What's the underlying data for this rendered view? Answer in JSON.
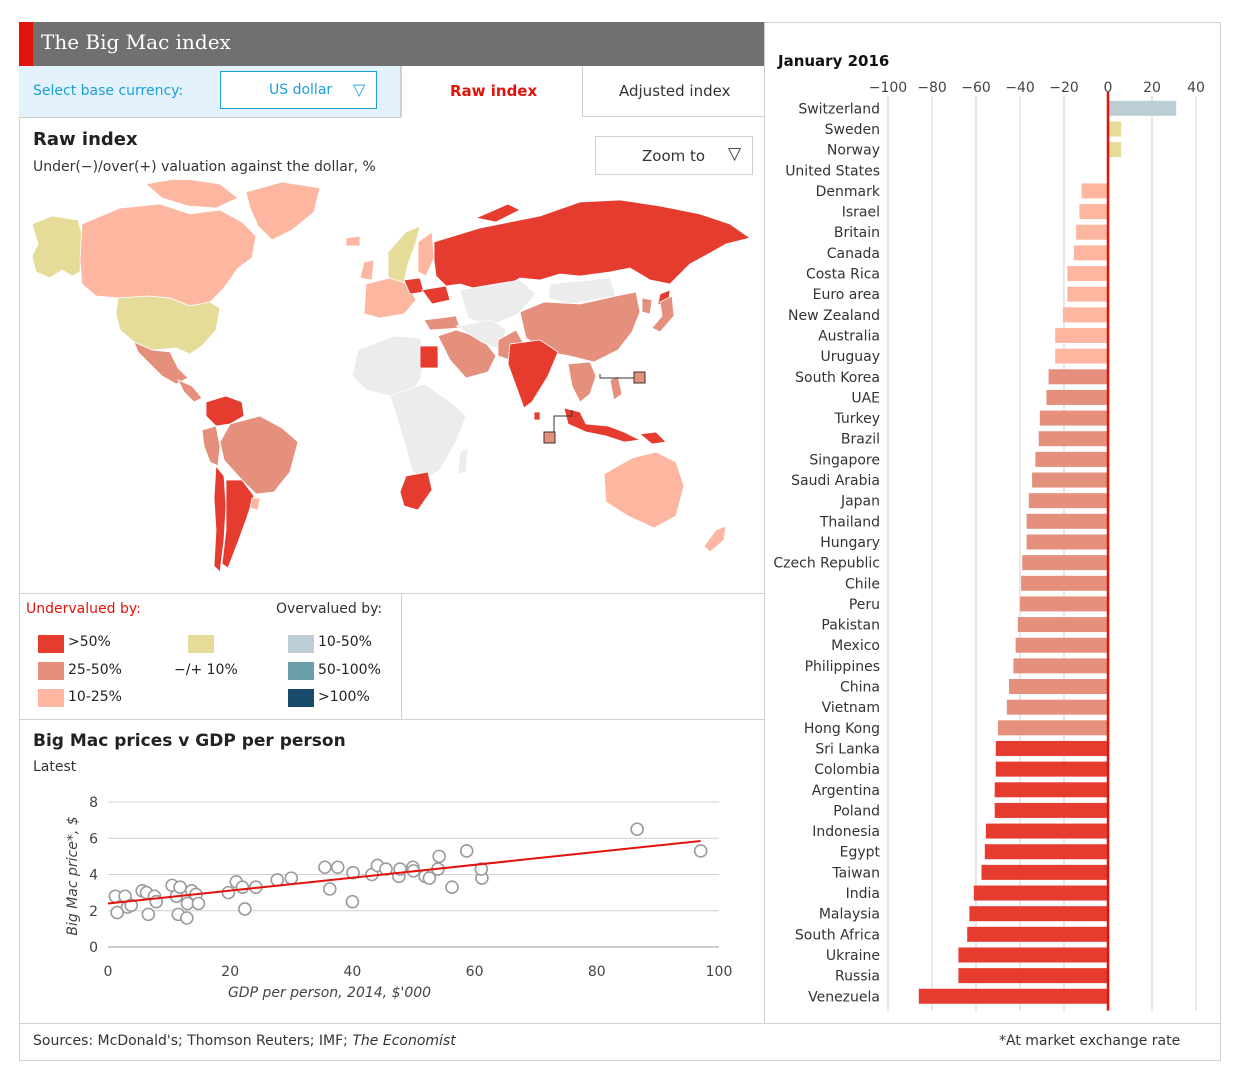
{
  "header": {
    "title": "The Big Mac index"
  },
  "controls": {
    "currency_label": "Select base currency:",
    "currency_value": "US dollar",
    "tabs": [
      {
        "label": "Raw index",
        "active": true
      },
      {
        "label": "Adjusted index",
        "active": false
      }
    ],
    "zoom_label": "Zoom to"
  },
  "map": {
    "title": "Raw index",
    "subtitle": "Under(−)/over(+) valuation against the dollar, %"
  },
  "legend": {
    "undervalued_label": "Undervalued by:",
    "overvalued_label": "Overvalued by:",
    "items": [
      {
        "label": ">50%",
        "color": "#e63c2f"
      },
      {
        "label": "25-50%",
        "color": "#e4907c"
      },
      {
        "label": "10-25%",
        "color": "#fdb6a0"
      },
      {
        "label": "−/+ 10%",
        "color": "#e6dc9a"
      },
      {
        "label": "10-50%",
        "color": "#bccdd6"
      },
      {
        "label": "50-100%",
        "color": "#6a9ea9"
      },
      {
        "label": ">100%",
        "color": "#184a6a"
      }
    ]
  },
  "chart_data": [
    {
      "type": "bar",
      "orientation": "horizontal",
      "title": "January 2016",
      "xlim": [
        -100,
        40
      ],
      "ticks": [
        -100,
        -80,
        -60,
        -40,
        -20,
        0,
        20,
        40
      ],
      "tick_labels": [
        "−100",
        "−80",
        "−60",
        "−40",
        "−20",
        "0",
        "20",
        "40"
      ],
      "categories": [
        "Switzerland",
        "Sweden",
        "Norway",
        "United States",
        "Denmark",
        "Israel",
        "Britain",
        "Canada",
        "Costa Rica",
        "Euro area",
        "New Zealand",
        "Australia",
        "Uruguay",
        "South Korea",
        "UAE",
        "Turkey",
        "Brazil",
        "Singapore",
        "Saudi Arabia",
        "Japan",
        "Thailand",
        "Hungary",
        "Czech Republic",
        "Chile",
        "Peru",
        "Pakistan",
        "Mexico",
        "Philippines",
        "China",
        "Vietnam",
        "Hong Kong",
        "Sri Lanka",
        "Colombia",
        "Argentina",
        "Poland",
        "Indonesia",
        "Egypt",
        "Taiwan",
        "India",
        "Malaysia",
        "South Africa",
        "Ukraine",
        "Russia",
        "Venezuela"
      ],
      "values": [
        31,
        6,
        6,
        0,
        -12,
        -13,
        -14.5,
        -15.5,
        -18.5,
        -18.5,
        -20.5,
        -24,
        -24,
        -27,
        -28,
        -31,
        -31.5,
        -33,
        -34.5,
        -36,
        -37,
        -37,
        -39,
        -39.5,
        -40,
        -41,
        -42,
        -43,
        -45,
        -46,
        -50,
        -51,
        -51,
        -51.5,
        -51.5,
        -55.5,
        -56,
        -57.5,
        -61,
        -63,
        -64,
        -68,
        -68,
        -86
      ]
    },
    {
      "type": "scatter",
      "title": "Big Mac prices v GDP per person",
      "subtitle": "Latest",
      "xlabel": "GDP per person, 2014, $'000",
      "ylabel": "Big Mac price*, $",
      "xlim": [
        0,
        100
      ],
      "ylim": [
        0,
        8
      ],
      "xticks": [
        0,
        20,
        40,
        60,
        80,
        100
      ],
      "yticks": [
        0,
        2,
        4,
        6,
        8
      ],
      "points": [
        [
          1.2,
          2.8
        ],
        [
          1.5,
          1.9
        ],
        [
          2.8,
          2.8
        ],
        [
          3.2,
          2.2
        ],
        [
          3.8,
          2.3
        ],
        [
          5.6,
          3.1
        ],
        [
          6.3,
          3.0
        ],
        [
          6.6,
          1.8
        ],
        [
          7.6,
          2.8
        ],
        [
          7.9,
          2.5
        ],
        [
          10.5,
          3.4
        ],
        [
          11.2,
          2.8
        ],
        [
          11.5,
          1.8
        ],
        [
          11.8,
          3.3
        ],
        [
          12.9,
          1.6
        ],
        [
          13.0,
          2.4
        ],
        [
          13.7,
          3.1
        ],
        [
          14.4,
          2.9
        ],
        [
          14.8,
          2.4
        ],
        [
          19.7,
          3.0
        ],
        [
          21.0,
          3.6
        ],
        [
          22.0,
          3.3
        ],
        [
          22.4,
          2.1
        ],
        [
          24.2,
          3.3
        ],
        [
          27.7,
          3.7
        ],
        [
          30.0,
          3.8
        ],
        [
          35.5,
          4.4
        ],
        [
          36.3,
          3.2
        ],
        [
          37.6,
          4.4
        ],
        [
          40.0,
          2.5
        ],
        [
          40.1,
          4.1
        ],
        [
          43.2,
          4.0
        ],
        [
          44.1,
          4.5
        ],
        [
          45.5,
          4.3
        ],
        [
          47.6,
          3.9
        ],
        [
          47.8,
          4.3
        ],
        [
          49.9,
          4.4
        ],
        [
          50.0,
          4.2
        ],
        [
          51.9,
          3.9
        ],
        [
          52.6,
          3.8
        ],
        [
          54.0,
          4.3
        ],
        [
          54.2,
          5.0
        ],
        [
          56.3,
          3.3
        ],
        [
          58.7,
          5.3
        ],
        [
          61.2,
          3.8
        ],
        [
          61.1,
          4.3
        ],
        [
          86.6,
          6.5
        ],
        [
          97.0,
          5.3
        ]
      ],
      "trend": [
        [
          0,
          2.4
        ],
        [
          97,
          5.85
        ]
      ]
    }
  ],
  "footer": {
    "sources_prefix": "Sources: McDonald's; Thomson Reuters; IMF; ",
    "sources_italic": "The Economist",
    "footnote": "*At market exchange rate"
  }
}
